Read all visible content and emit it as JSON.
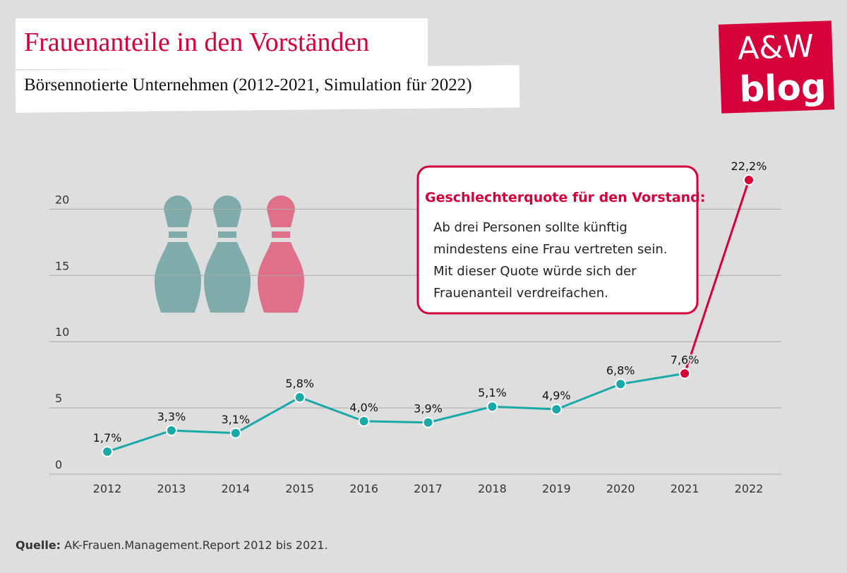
{
  "chart_data": {
    "type": "line",
    "title": "Frauenanteile in den Vorständen",
    "subtitle": "Börsennotierte Unternehmen (2012-2021, Simulation für 2022)",
    "categories": [
      "2012",
      "2013",
      "2014",
      "2015",
      "2016",
      "2017",
      "2018",
      "2019",
      "2020",
      "2021",
      "2022"
    ],
    "values": [
      1.7,
      3.3,
      3.1,
      5.8,
      4.0,
      3.9,
      5.1,
      4.9,
      6.8,
      7.6,
      22.2
    ],
    "value_labels": [
      "1,7%",
      "3,3%",
      "3,1%",
      "5,8%",
      "4,0%",
      "3,9%",
      "5,1%",
      "4,9%",
      "6,8%",
      "7,6%",
      "22,2%"
    ],
    "color": "#1aa9a9",
    "point_colors": [
      "#1aa9a9",
      "#1aa9a9",
      "#1aa9a9",
      "#1aa9a9",
      "#1aa9a9",
      "#1aa9a9",
      "#1aa9a9",
      "#1aa9a9",
      "#1aa9a9",
      "#d6003b",
      "#d6003b"
    ],
    "ylim": [
      0,
      23
    ],
    "yticks": [
      0,
      5,
      10,
      15,
      20
    ],
    "grid": true,
    "annotation": {
      "title": "Geschlechterquote für den Vorstand:",
      "lines": [
        "Ab drei Personen sollte künftig",
        "mindestens eine Frau vertreten sein.",
        "Mit dieser Quote würde sich der",
        "Frauenanteil verdreifachen."
      ]
    },
    "source": {
      "label": "Quelle:",
      "text": "AK-Frauen.Management.Report 2012 bis 2021."
    }
  },
  "logo": {
    "line1": "A&W",
    "line2": "blog"
  }
}
